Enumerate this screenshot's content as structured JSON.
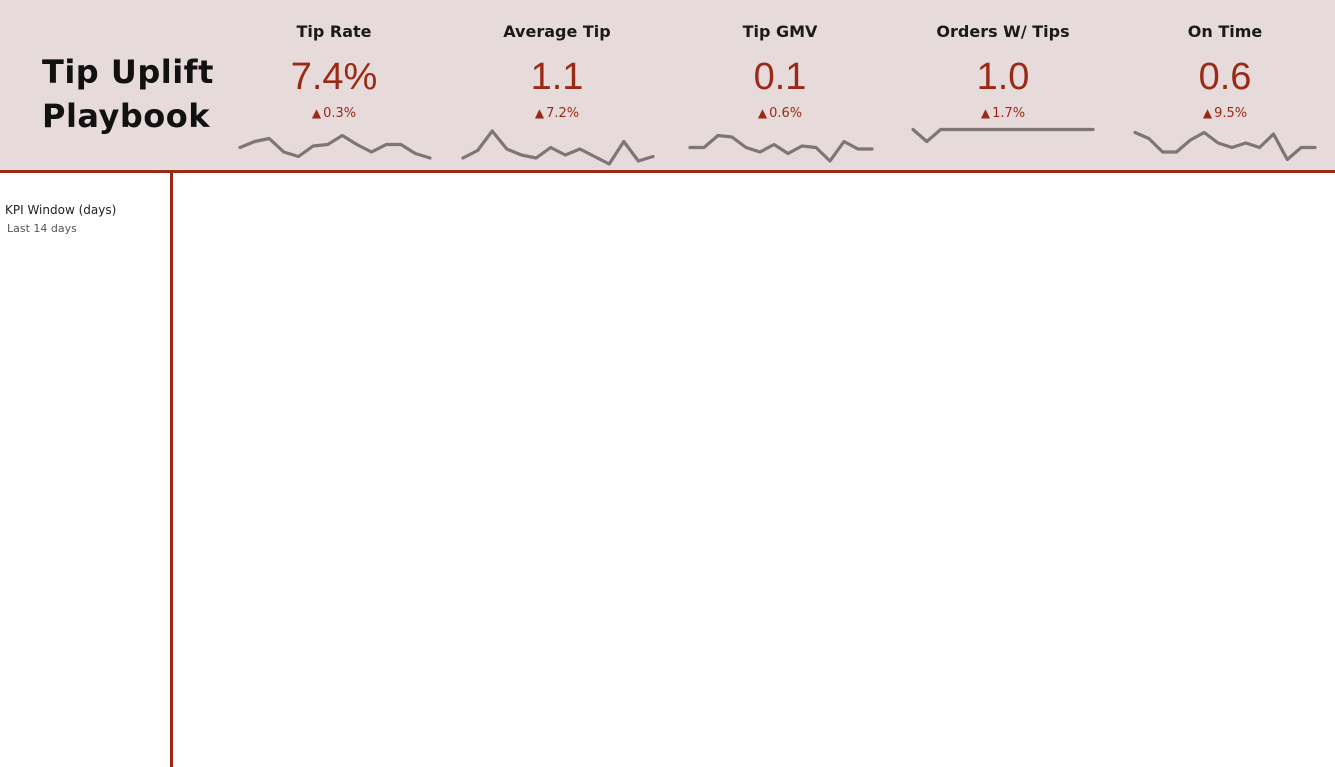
{
  "title_line1": "Tip Uplift",
  "title_line2": "Playbook",
  "kpis": [
    {
      "label": "Tip Rate",
      "value": "7.4%",
      "delta_icon": "▲",
      "delta": "0.3%",
      "trend": [
        0.35,
        0.55,
        0.65,
        0.2,
        0.05,
        0.4,
        0.45,
        0.75,
        0.45,
        0.2,
        0.45,
        0.45,
        0.15,
        0.0
      ]
    },
    {
      "label": "Average Tip",
      "value": "1.1",
      "delta_icon": "▲",
      "delta": "7.2%",
      "trend": [
        0.0,
        0.25,
        0.9,
        0.3,
        0.1,
        0.0,
        0.35,
        0.1,
        0.3,
        0.05,
        -0.2,
        0.55,
        -0.1,
        0.05
      ]
    },
    {
      "label": "Tip GMV",
      "value": "0.1",
      "delta_icon": "▲",
      "delta": "0.6%",
      "trend": [
        0.35,
        0.35,
        0.75,
        0.7,
        0.35,
        0.2,
        0.45,
        0.15,
        0.4,
        0.35,
        -0.1,
        0.55,
        0.3,
        0.3
      ]
    },
    {
      "label": "Orders W/ Tips",
      "value": "1.0",
      "delta_icon": "▲",
      "delta": "1.7%",
      "trend": [
        0.95,
        0.55,
        0.95,
        0.95,
        0.95,
        0.95,
        0.95,
        0.95,
        0.95,
        0.95,
        0.95,
        0.95,
        0.95,
        0.95
      ]
    },
    {
      "label": "On Time",
      "value": "0.6",
      "delta_icon": "▲",
      "delta": "9.5%",
      "trend": [
        0.85,
        0.65,
        0.2,
        0.2,
        0.6,
        0.85,
        0.5,
        0.35,
        0.5,
        0.35,
        0.8,
        -0.05,
        0.35,
        0.35
      ]
    }
  ],
  "filter": {
    "label": "KPI Window (days)",
    "value": "Last 14 days"
  },
  "colors": {
    "accent": "#9a2a16",
    "header_bg": "#e6dadb",
    "sparkline": "#7e7575"
  }
}
